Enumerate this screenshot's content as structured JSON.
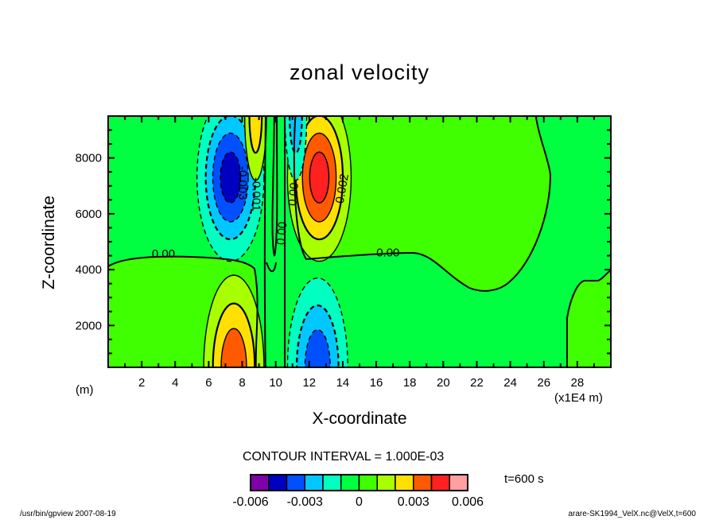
{
  "chart_data": {
    "type": "contour",
    "title": "zonal velocity",
    "xlabel": "X-coordinate",
    "ylabel": "Z-coordinate",
    "x_unit_label": "(m)",
    "x_scale_label": "(x1E4 m)",
    "xlim": [
      0,
      30
    ],
    "ylim": [
      500,
      9500
    ],
    "x_ticks": [
      2,
      4,
      6,
      8,
      10,
      12,
      14,
      16,
      18,
      20,
      22,
      24,
      26,
      28
    ],
    "y_ticks": [
      2000,
      4000,
      6000,
      8000
    ],
    "contour_interval_label": "CONTOUR INTERVAL = 1.000E-03",
    "contour_interval": 0.001,
    "time_label": "t=600 s",
    "levels": [
      -0.006,
      -0.005,
      -0.004,
      -0.003,
      -0.002,
      -0.001,
      0,
      0.001,
      0.002,
      0.003,
      0.004,
      0.005,
      0.006
    ],
    "colors": [
      "#8000a8",
      "#0000c0",
      "#0050ff",
      "#00c8ff",
      "#00ffc0",
      "#00ff40",
      "#40ff00",
      "#a8ff00",
      "#ffe000",
      "#ff5a00",
      "#ff2020",
      "#ffa0a0"
    ],
    "colorbar_labels": [
      {
        "value": -0.006,
        "text": "-0.006"
      },
      {
        "value": -0.003,
        "text": "-0.003"
      },
      {
        "value": 0,
        "text": "0"
      },
      {
        "value": 0.003,
        "text": "0.003"
      },
      {
        "value": 0.006,
        "text": "0.006"
      }
    ],
    "extrema": [
      {
        "name": "upper-left-negative",
        "x": 7.3,
        "z": 7300,
        "rx": 2.0,
        "rz": 3000,
        "value": -0.0046
      },
      {
        "name": "upper-right-positive",
        "x": 12.6,
        "z": 7300,
        "rx": 1.9,
        "rz": 3000,
        "value": 0.0046
      },
      {
        "name": "lower-left-positive",
        "x": 7.5,
        "z": 500,
        "rx": 1.8,
        "rz": 3300,
        "value": 0.0038
      },
      {
        "name": "lower-right-negative",
        "x": 12.5,
        "z": 500,
        "rx": 1.8,
        "rz": 3200,
        "value": -0.0038
      },
      {
        "name": "top-small-positive",
        "x": 8.8,
        "z": 9500,
        "rx": 0.65,
        "rz": 2300,
        "value": 0.0028
      },
      {
        "name": "top-small-negative",
        "x": 11.2,
        "z": 9500,
        "rx": 0.65,
        "rz": 2300,
        "value": -0.0028
      }
    ],
    "contour_labels": [
      {
        "text": "0.00",
        "x": 3.3,
        "z": 4550,
        "angle": 0
      },
      {
        "text": "0.00",
        "x": 16.7,
        "z": 4580,
        "angle": 0
      },
      {
        "text": "0.002",
        "x": 14.0,
        "z": 6900,
        "angle": -80
      },
      {
        "text": "-0.003",
        "x": 8.0,
        "z": 7100,
        "angle": 90
      },
      {
        "text": "-0.001",
        "x": 8.8,
        "z": 6700,
        "angle": 90
      },
      {
        "text": "0.00",
        "x": 10.4,
        "z": 5300,
        "angle": -85
      },
      {
        "text": "0.00",
        "x": 11.1,
        "z": 6700,
        "angle": -85
      }
    ]
  },
  "footer": {
    "left": "/usr/bin/gpview   2007-08-19",
    "right": "arare-SK1994_VelX.nc@VelX,t=600"
  }
}
